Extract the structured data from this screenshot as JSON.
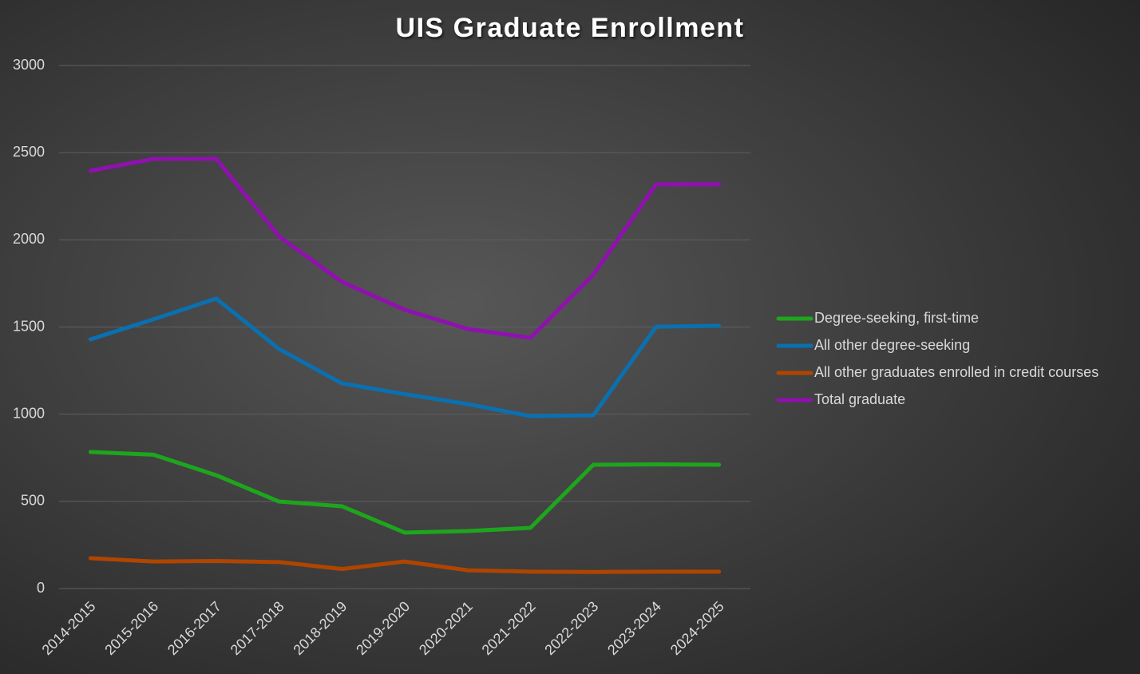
{
  "chart_data": {
    "type": "line",
    "title": "UIS Graduate Enrollment",
    "categories": [
      "2014-2015",
      "2015-2016",
      "2016-2017",
      "2017-2018",
      "2018-2019",
      "2019-2020",
      "2020-2021",
      "2021-2022",
      "2022-2023",
      "2023-2024",
      "2024-2025"
    ],
    "series": [
      {
        "name": "Degree-seeking, first-time",
        "color": "#1ea51e",
        "values": [
          783,
          768,
          650,
          499,
          472,
          321,
          330,
          348,
          710,
          712,
          710
        ]
      },
      {
        "name": "All other degree-seeking",
        "color": "#0a70b0",
        "values": [
          1429,
          1544,
          1663,
          1374,
          1177,
          1115,
          1058,
          989,
          994,
          1502,
          1507
        ]
      },
      {
        "name": "All other graduates enrolled in credit courses",
        "color": "#b04500",
        "values": [
          174,
          155,
          158,
          152,
          112,
          155,
          105,
          97,
          95,
          97,
          97
        ]
      },
      {
        "name": "Total graduate",
        "color": "#9010b0",
        "values": [
          2396,
          2464,
          2465,
          2020,
          1759,
          1599,
          1489,
          1438,
          1800,
          2318,
          2318
        ]
      }
    ],
    "ylim": [
      0,
      3000
    ],
    "yticks": [
      0,
      500,
      1000,
      1500,
      2000,
      2500,
      3000
    ],
    "grid": true,
    "legend": "right"
  }
}
